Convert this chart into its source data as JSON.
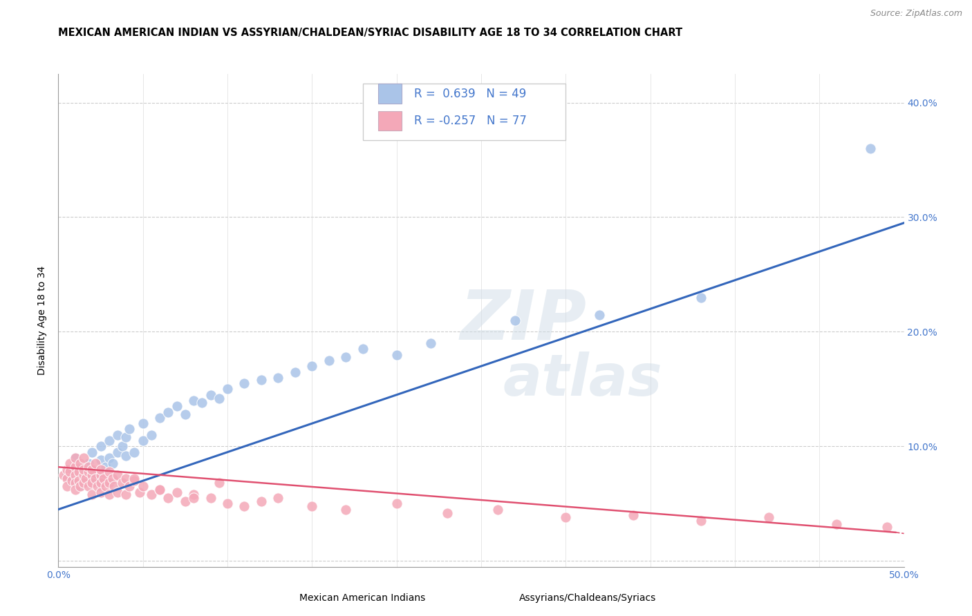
{
  "title": "MEXICAN AMERICAN INDIAN VS ASSYRIAN/CHALDEAN/SYRIAC DISABILITY AGE 18 TO 34 CORRELATION CHART",
  "source": "Source: ZipAtlas.com",
  "xlabel": "",
  "ylabel": "Disability Age 18 to 34",
  "xlim": [
    0.0,
    0.5
  ],
  "ylim": [
    -0.005,
    0.425
  ],
  "xticks": [
    0.0,
    0.05,
    0.1,
    0.15,
    0.2,
    0.25,
    0.3,
    0.35,
    0.4,
    0.45,
    0.5
  ],
  "xticklabels": [
    "0.0%",
    "",
    "",
    "",
    "",
    "",
    "",
    "",
    "",
    "",
    "50.0%"
  ],
  "yticks": [
    0.0,
    0.1,
    0.2,
    0.3,
    0.4
  ],
  "yticklabels": [
    "",
    "10.0%",
    "20.0%",
    "30.0%",
    "40.0%"
  ],
  "background_color": "#ffffff",
  "grid_color": "#cccccc",
  "blue_scatter_x": [
    0.005,
    0.007,
    0.01,
    0.01,
    0.012,
    0.015,
    0.018,
    0.02,
    0.02,
    0.022,
    0.025,
    0.025,
    0.028,
    0.03,
    0.03,
    0.032,
    0.035,
    0.035,
    0.038,
    0.04,
    0.04,
    0.042,
    0.045,
    0.05,
    0.05,
    0.055,
    0.06,
    0.065,
    0.07,
    0.075,
    0.08,
    0.085,
    0.09,
    0.095,
    0.1,
    0.11,
    0.12,
    0.13,
    0.14,
    0.15,
    0.16,
    0.17,
    0.18,
    0.2,
    0.22,
    0.27,
    0.32,
    0.38,
    0.48
  ],
  "blue_scatter_y": [
    0.075,
    0.07,
    0.068,
    0.09,
    0.065,
    0.08,
    0.085,
    0.078,
    0.095,
    0.072,
    0.088,
    0.1,
    0.082,
    0.09,
    0.105,
    0.085,
    0.095,
    0.11,
    0.1,
    0.092,
    0.108,
    0.115,
    0.095,
    0.105,
    0.12,
    0.11,
    0.125,
    0.13,
    0.135,
    0.128,
    0.14,
    0.138,
    0.145,
    0.142,
    0.15,
    0.155,
    0.158,
    0.16,
    0.165,
    0.17,
    0.175,
    0.178,
    0.185,
    0.18,
    0.19,
    0.21,
    0.215,
    0.23,
    0.36
  ],
  "blue_line_x": [
    0.0,
    0.5
  ],
  "blue_line_y": [
    0.045,
    0.295
  ],
  "blue_r": "0.639",
  "blue_n": "49",
  "blue_color": "#aac4e8",
  "blue_line_color": "#3366bb",
  "pink_scatter_x": [
    0.003,
    0.005,
    0.005,
    0.005,
    0.007,
    0.007,
    0.008,
    0.01,
    0.01,
    0.01,
    0.01,
    0.01,
    0.012,
    0.012,
    0.013,
    0.013,
    0.015,
    0.015,
    0.015,
    0.015,
    0.016,
    0.018,
    0.018,
    0.018,
    0.02,
    0.02,
    0.02,
    0.02,
    0.022,
    0.022,
    0.023,
    0.025,
    0.025,
    0.025,
    0.025,
    0.027,
    0.028,
    0.03,
    0.03,
    0.03,
    0.032,
    0.033,
    0.035,
    0.035,
    0.038,
    0.04,
    0.04,
    0.042,
    0.045,
    0.048,
    0.05,
    0.055,
    0.06,
    0.065,
    0.07,
    0.075,
    0.08,
    0.09,
    0.1,
    0.11,
    0.12,
    0.13,
    0.15,
    0.17,
    0.2,
    0.23,
    0.26,
    0.3,
    0.34,
    0.38,
    0.42,
    0.46,
    0.49,
    0.045,
    0.06,
    0.08,
    0.095
  ],
  "pink_scatter_y": [
    0.075,
    0.08,
    0.072,
    0.065,
    0.078,
    0.085,
    0.07,
    0.082,
    0.075,
    0.068,
    0.09,
    0.062,
    0.078,
    0.07,
    0.085,
    0.065,
    0.075,
    0.08,
    0.068,
    0.09,
    0.072,
    0.078,
    0.065,
    0.082,
    0.075,
    0.068,
    0.08,
    0.058,
    0.072,
    0.085,
    0.065,
    0.075,
    0.068,
    0.08,
    0.06,
    0.072,
    0.065,
    0.078,
    0.068,
    0.058,
    0.072,
    0.065,
    0.075,
    0.06,
    0.068,
    0.072,
    0.058,
    0.065,
    0.07,
    0.06,
    0.065,
    0.058,
    0.062,
    0.055,
    0.06,
    0.052,
    0.058,
    0.055,
    0.05,
    0.048,
    0.052,
    0.055,
    0.048,
    0.045,
    0.05,
    0.042,
    0.045,
    0.038,
    0.04,
    0.035,
    0.038,
    0.032,
    0.03,
    0.072,
    0.062,
    0.055,
    0.068
  ],
  "pink_line_x": [
    0.0,
    0.495
  ],
  "pink_line_y": [
    0.082,
    0.025
  ],
  "pink_r": "-0.257",
  "pink_n": "77",
  "pink_color": "#f4a8b8",
  "pink_line_color": "#e05070",
  "legend_box_color": "#f5f5ff",
  "legend_border_color": "#bbbbcc",
  "title_fontsize": 10.5,
  "axis_label_fontsize": 10,
  "tick_fontsize": 10,
  "legend_fontsize": 12,
  "tick_color": "#4477cc",
  "source_fontsize": 9
}
